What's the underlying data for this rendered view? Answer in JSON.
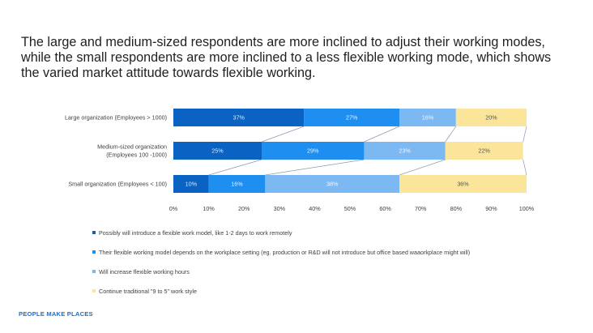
{
  "headline": {
    "line1": "The large and medium-sized respondents are more inclined to adjust their working modes,",
    "line2": "while the small respondents are more inclined to a less flexible working mode, which shows",
    "line3": "the varied market attitude towards flexible working."
  },
  "footer": {
    "text": "PEOPLE MAKE PLACES",
    "color": "#1a6fd1"
  },
  "legend": [
    {
      "label": "Possibly will introduce a flexible work model, like 1-2 days to work remotely",
      "color": "#0a62c2"
    },
    {
      "label": "Their flexible working model depends on the workplace setting (eg. production or R&D will not introduce but office based waaorkplace might will)",
      "color": "#1f8ef1"
    },
    {
      "label": "Will increase flexible working hours",
      "color": "#7cb9f2"
    },
    {
      "label": "Continue traditional \"9 to 5\" work style",
      "color": "#fae59a"
    }
  ],
  "chart_data": {
    "type": "bar",
    "orientation": "horizontal",
    "stacked": true,
    "categories": [
      [
        "Large organization (Employees > 1000)"
      ],
      [
        "Medium-sized organization",
        "(Employees 100 -1000)"
      ],
      [
        "Small organization (Employees < 100)"
      ]
    ],
    "series": [
      {
        "name": "Possibly will introduce a flexible work model, like 1-2 days to work remotely",
        "values": [
          37,
          25,
          10
        ],
        "color": "#0a62c2",
        "label_color": "#dbe9fb"
      },
      {
        "name": "Their flexible working model depends on the workplace setting (eg. production or R&D will not introduce but office based waaorkplace might will)",
        "values": [
          27,
          29,
          16
        ],
        "color": "#1f8ef1",
        "label_color": "#e6f1fd"
      },
      {
        "name": "Will increase flexible working hours",
        "values": [
          16,
          23,
          38
        ],
        "color": "#7cb9f2",
        "label_color": "#f2f8ff"
      },
      {
        "name": "Continue traditional \"9 to 5\" work style",
        "values": [
          20,
          22,
          36
        ],
        "color": "#fae59a",
        "label_color": "#555555"
      }
    ],
    "xlim": [
      0,
      100
    ],
    "xticks": [
      "0%",
      "10%",
      "20%",
      "30%",
      "40%",
      "50%",
      "60%",
      "70%",
      "80%",
      "90%",
      "100%"
    ],
    "series_lines": true,
    "grid": false,
    "legend_position": "bottom-left"
  }
}
